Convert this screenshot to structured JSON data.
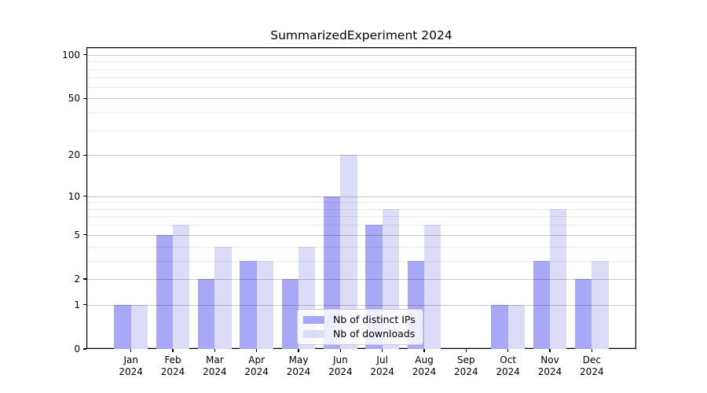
{
  "title": "SummarizedExperiment 2024",
  "chart_data": {
    "type": "bar",
    "title": "SummarizedExperiment 2024",
    "scale": "log1p",
    "categories": [
      "Jan 2024",
      "Feb 2024",
      "Mar 2024",
      "Apr 2024",
      "May 2024",
      "Jun 2024",
      "Jul 2024",
      "Aug 2024",
      "Sep 2024",
      "Oct 2024",
      "Nov 2024",
      "Dec 2024"
    ],
    "series": [
      {
        "name": "Nb of distinct IPs",
        "color": "#a8a8f6",
        "values": [
          1,
          5,
          2,
          3,
          2,
          10,
          6,
          3,
          0,
          1,
          3,
          2
        ]
      },
      {
        "name": "Nb of downloads",
        "color": "#dcdcf8",
        "values": [
          1,
          6,
          4,
          3,
          4,
          20,
          8,
          6,
          0,
          1,
          8,
          3
        ]
      }
    ],
    "xlabel": "",
    "ylabel": "",
    "yticks": [
      0,
      1,
      2,
      5,
      10,
      20,
      50,
      100
    ],
    "minor_yticks": [
      3,
      4,
      6,
      7,
      8,
      9,
      30,
      40,
      60,
      70,
      80,
      90
    ],
    "ylim": [
      0,
      113
    ],
    "grid": true,
    "legend_position": "inside lower center"
  },
  "colors": {
    "background": "#ffffff",
    "axis": "#000000",
    "grid_major": "rgba(0,0,0,0.21)",
    "grid_minor": "rgba(0,0,0,0.08)",
    "legend_bg": "rgba(255,255,255,0.8)",
    "legend_border": "#cccccc"
  }
}
